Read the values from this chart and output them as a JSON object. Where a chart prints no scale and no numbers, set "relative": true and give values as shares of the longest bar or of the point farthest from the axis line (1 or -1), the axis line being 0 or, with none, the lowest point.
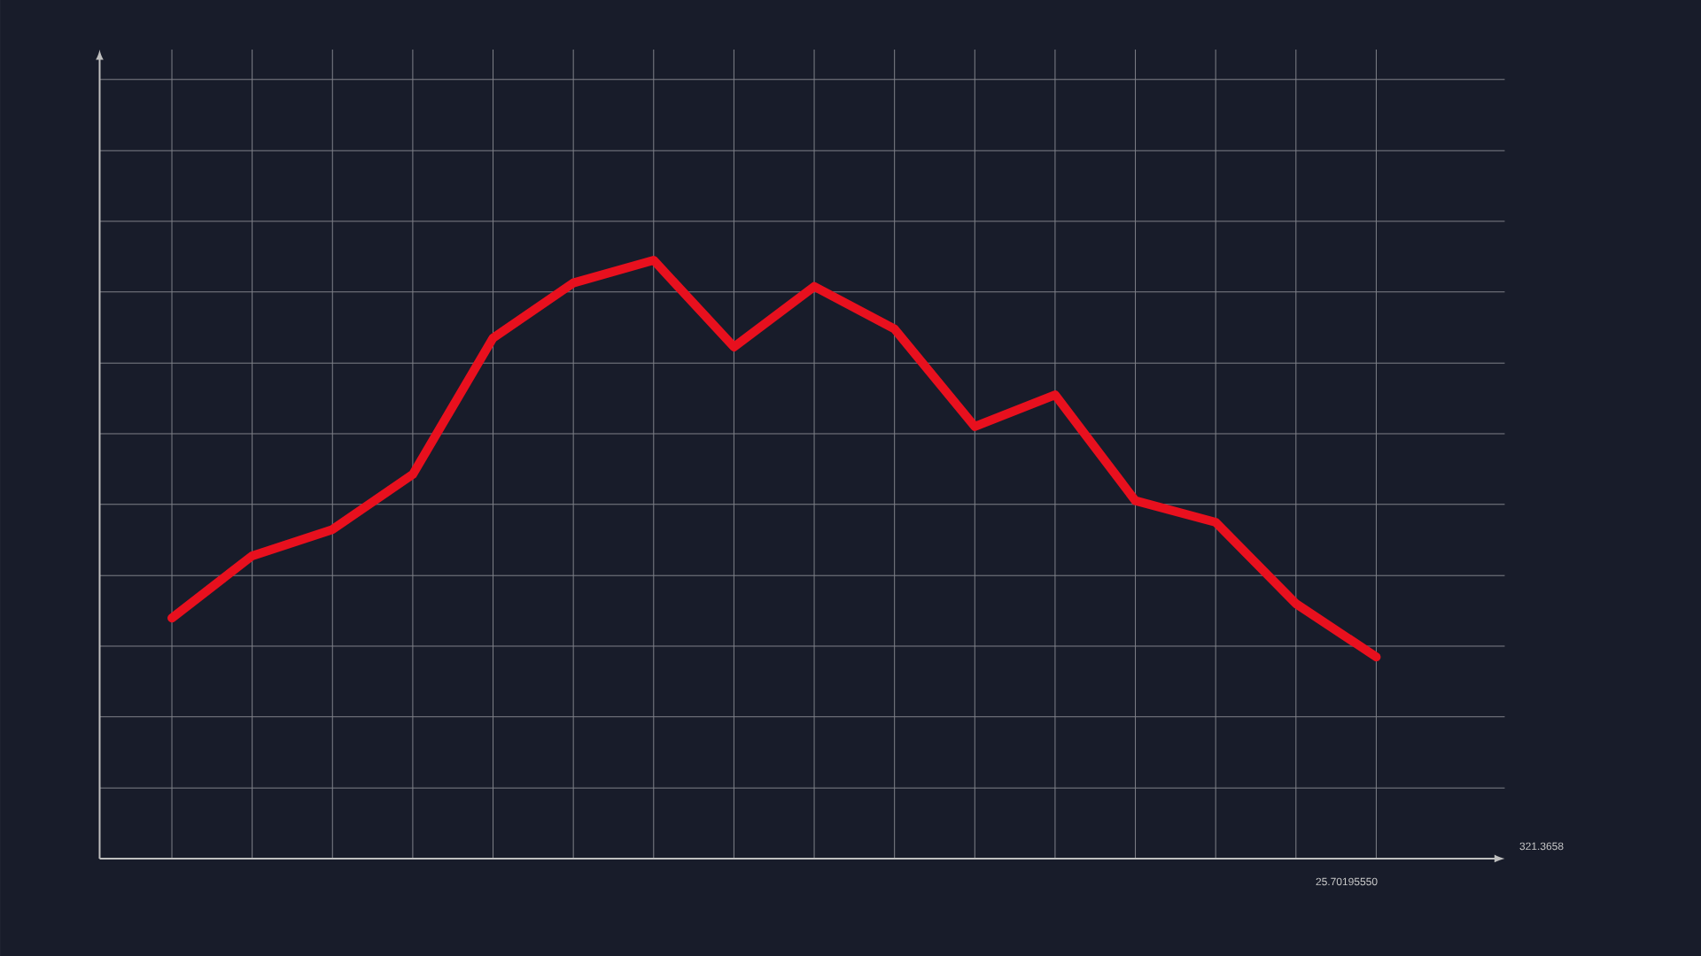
{
  "chart_data": {
    "type": "line",
    "relative": true,
    "color": "#e8101e",
    "grid": true,
    "marker": "none",
    "line_style": "solid",
    "categories": [
      null,
      null,
      null,
      null,
      null,
      null,
      null,
      null,
      null,
      null,
      null,
      null,
      null,
      null,
      null,
      null
    ],
    "values": [
      0.402,
      0.506,
      0.55,
      0.642,
      0.87,
      0.962,
      1,
      0.855,
      0.956,
      0.885,
      0.722,
      0.775,
      0.598,
      0.562,
      0.426,
      0.337
    ],
    "annotations": [
      "25.70195550",
      "321.3658"
    ]
  }
}
